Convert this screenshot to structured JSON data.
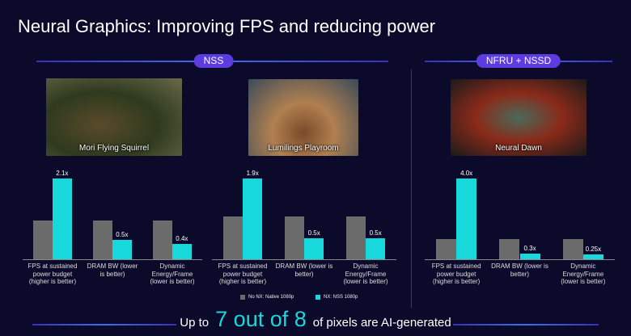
{
  "title": "Neural Graphics: Improving FPS and reducing power",
  "sections": [
    "NSS",
    "NFRU + NSSD"
  ],
  "footer": {
    "prefix": "Up to",
    "highlight": "7 out of 8",
    "suffix": "of pixels are AI-generated"
  },
  "chart_data": [
    {
      "type": "bar",
      "image_caption": "Mori Flying Squirrel",
      "categories": [
        "FPS at sustained power budget (higher is better)",
        "DRAM BW (lower is better)",
        "Dynamic Energy/Frame (lower is better)"
      ],
      "series": [
        {
          "name": "No NX: Native 1080p",
          "color": "#6b6b6b",
          "values": [
            1,
            1,
            1
          ]
        },
        {
          "name": "NX: NSS 1080p",
          "color": "#17d9dc",
          "values": [
            2.1,
            0.5,
            0.4
          ],
          "value_labels": [
            "2.1x",
            "0.5x",
            "0.4x"
          ]
        }
      ]
    },
    {
      "type": "bar",
      "image_caption": "Lumilings Playroom",
      "categories": [
        "FPS at sustained power budget (higher is better)",
        "DRAM BW (lower is better)",
        "Dynamic Energy/Frame (lower is better)"
      ],
      "series": [
        {
          "name": "No NX: Native 1080p",
          "color": "#6b6b6b",
          "values": [
            1,
            1,
            1
          ]
        },
        {
          "name": "NX: NSS 1080p",
          "color": "#17d9dc",
          "values": [
            1.9,
            0.5,
            0.5
          ],
          "value_labels": [
            "1.9x",
            "0.5x",
            "0.5x"
          ]
        }
      ]
    },
    {
      "type": "bar",
      "image_caption": "Neural Dawn",
      "categories": [
        "FPS at sustained power budget (higher is better)",
        "DRAM BW (lower is better)",
        "Dynamic Energy/Frame (lower is better)"
      ],
      "series": [
        {
          "name": "No NX: Native 1080p",
          "color": "#6b6b6b",
          "values": [
            1,
            1,
            1
          ]
        },
        {
          "name": "NX: NSS 1080p",
          "color": "#17d9dc",
          "values": [
            4.0,
            0.3,
            0.25
          ],
          "value_labels": [
            "4.0x",
            "0.3x",
            "0.25x"
          ]
        }
      ]
    }
  ]
}
